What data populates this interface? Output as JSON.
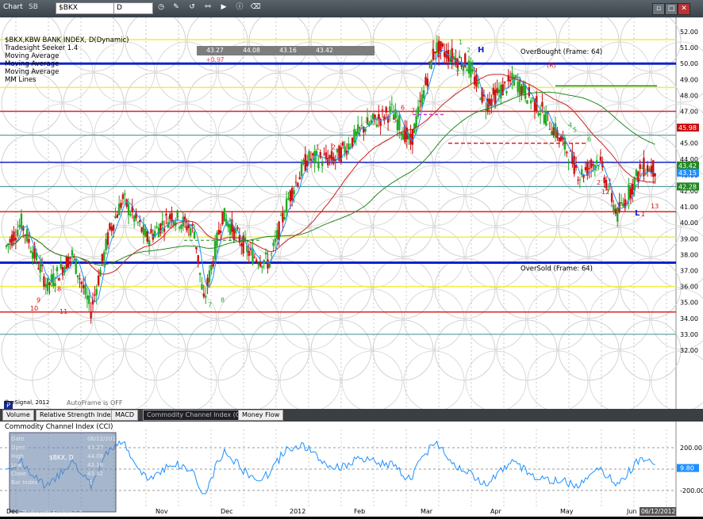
{
  "toolbar": {
    "window_title": "Chart",
    "window_badge": "SB",
    "symbol": "$BKX",
    "interval": "D"
  },
  "chart": {
    "legend": [
      "$BKX,KBW BANK INDEX, D(Dynamic)",
      "Tradesight Seeker 1.4",
      "Moving Average",
      "Moving Average",
      "Moving Average",
      "MM Lines"
    ],
    "ohlc": [
      "43.27",
      "44.08",
      "43.16",
      "43.42",
      "+0.97"
    ],
    "overbought": "OverBought (Frame: 64)",
    "oversold": "OverSold (Frame: 64)",
    "autoframe": "AutoFrame is OFF",
    "copyright": "© eSignal, 2012",
    "price_labels": [
      "52.00",
      "51.00",
      "50.00",
      "49.00",
      "48.00",
      "47.00",
      "46.00",
      "45.00",
      "44.00",
      "43.00",
      "42.00",
      "41.00",
      "40.00",
      "39.00",
      "38.00",
      "37.00",
      "36.00",
      "35.00",
      "34.00",
      "33.00",
      "32.00"
    ],
    "badges": [
      "45.98",
      "43.42",
      "43.15",
      "42.28"
    ],
    "month_labels": [
      "Dec",
      "Nov",
      "Dec",
      "2012",
      "Feb",
      "Mar",
      "Apr",
      "May",
      "Jun"
    ],
    "date_badge": "06/12/2012",
    "head_label": "H",
    "low_label": "L",
    "r_label": "(R)",
    "p_label": "P",
    "seq_labels": [
      {
        "t": "1",
        "c": "red"
      },
      {
        "t": "2",
        "c": "red"
      },
      {
        "t": "3",
        "c": "red"
      },
      {
        "t": "4",
        "c": "red"
      },
      {
        "t": "5",
        "c": "red"
      },
      {
        "t": "6",
        "c": "red"
      },
      {
        "t": "7",
        "c": "red"
      },
      {
        "t": "8",
        "c": "red"
      },
      {
        "t": "9",
        "c": "red"
      },
      {
        "t": "10",
        "c": "red"
      },
      {
        "t": "11",
        "c": "red"
      },
      {
        "t": "12",
        "c": "red"
      },
      {
        "t": "13",
        "c": "red"
      }
    ]
  },
  "tabs": [
    "Volume",
    "Relative Strength Index",
    "MACD",
    "Commodity Channel Index (CCI)",
    "Money Flow"
  ],
  "cci": {
    "title": "Commodity Channel Index (CCI)",
    "levels": [
      "200.00",
      "0.00",
      "-200.00"
    ],
    "current": "9.80",
    "inset_title": "$BKX, D",
    "inset_rows": [
      "Date",
      "Open",
      "High",
      "Low",
      "Close",
      "Bar Index"
    ],
    "inset_values": [
      "06/12/2012",
      "43.27",
      "44.08",
      "43.16",
      "43.42",
      "-1"
    ],
    "inset_footer": "Tradesight Seeker 1.4"
  },
  "colors": {
    "up": "#22aa22",
    "down": "#cc1111",
    "blue": "#1122cc",
    "yellow": "#eeee44"
  }
}
